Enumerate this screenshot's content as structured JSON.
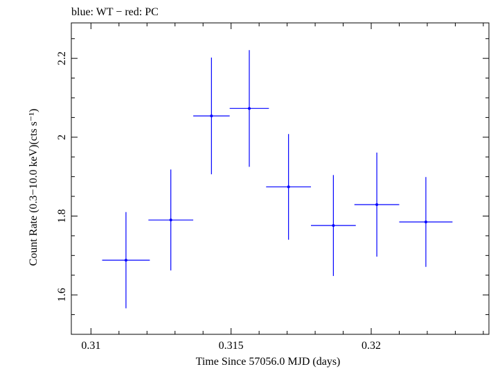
{
  "chart_data": {
    "type": "scatter",
    "title": "blue: WT − red: PC",
    "xlabel": "Time Since 57056.0 MJD (days)",
    "ylabel": "Count Rate (0.3−10.0 keV)(cts s⁻¹)",
    "xlim": [
      0.3093,
      0.3242
    ],
    "ylim": [
      1.5,
      2.29
    ],
    "xticks": [
      0.31,
      0.315,
      0.32
    ],
    "xtick_labels": [
      "0.31",
      "0.315",
      "0.32"
    ],
    "yticks": [
      1.6,
      1.8,
      2.0,
      2.2
    ],
    "ytick_labels": [
      "1.6",
      "1.8",
      "2",
      "2.2"
    ],
    "grid": false,
    "series": [
      {
        "name": "WT",
        "color": "#0000ff",
        "points": [
          {
            "x": 0.31125,
            "y": 1.688,
            "xerr": 0.00085,
            "yerr": 0.122
          },
          {
            "x": 0.31285,
            "y": 1.79,
            "xerr": 0.0008,
            "yerr": 0.128
          },
          {
            "x": 0.3143,
            "y": 2.054,
            "xerr": 0.00065,
            "yerr": 0.148
          },
          {
            "x": 0.31565,
            "y": 2.073,
            "xerr": 0.0007,
            "yerr": 0.148
          },
          {
            "x": 0.31705,
            "y": 1.874,
            "xerr": 0.0008,
            "yerr": 0.134
          },
          {
            "x": 0.31865,
            "y": 1.776,
            "xerr": 0.0008,
            "yerr": 0.128
          },
          {
            "x": 0.3202,
            "y": 1.829,
            "xerr": 0.0008,
            "yerr": 0.132
          },
          {
            "x": 0.32195,
            "y": 1.785,
            "xerr": 0.00095,
            "yerr": 0.114
          }
        ]
      }
    ]
  }
}
